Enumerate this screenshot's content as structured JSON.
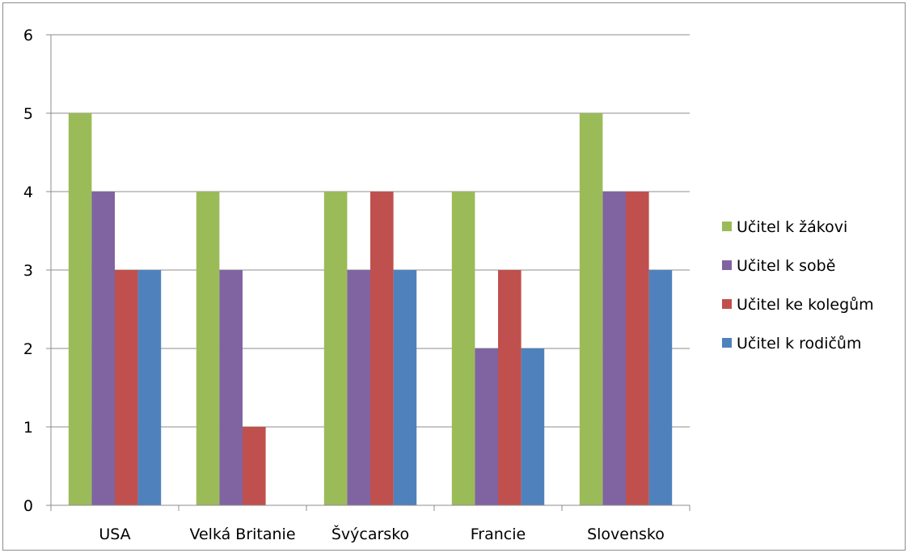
{
  "chart_data": {
    "type": "bar",
    "title": "",
    "xlabel": "",
    "ylabel": "",
    "ylim": [
      0,
      6
    ],
    "yticks": [
      0,
      1,
      2,
      3,
      4,
      5,
      6
    ],
    "grid": true,
    "legend_position": "right",
    "categories": [
      "USA",
      "Velká Britanie",
      "Švýcarsko",
      "Francie",
      "Slovensko"
    ],
    "series": [
      {
        "name": "Učitel k žákovi",
        "color": "#9bbb59",
        "values": [
          5,
          4,
          4,
          4,
          5
        ]
      },
      {
        "name": "Učitel k sobě",
        "color": "#8064a2",
        "values": [
          4,
          3,
          3,
          2,
          4
        ]
      },
      {
        "name": "Učitel ke kolegům",
        "color": "#c0504d",
        "values": [
          3,
          1,
          4,
          3,
          4
        ]
      },
      {
        "name": "Učitel k rodičům",
        "color": "#4f81bd",
        "values": [
          3,
          0,
          3,
          2,
          3
        ]
      }
    ]
  }
}
